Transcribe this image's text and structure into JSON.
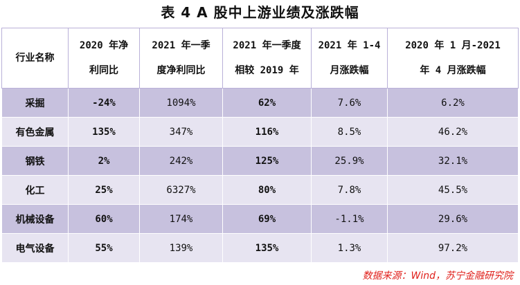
{
  "title": "表 4 A 股中上游业绩及涨跌幅",
  "table": {
    "headers": [
      [
        "行业名称"
      ],
      [
        "2020 年净",
        "利同比"
      ],
      [
        "2021 年一季",
        "度净利同比"
      ],
      [
        "2021 年一季度",
        "相较 2019 年"
      ],
      [
        "2021 年 1-4",
        "月涨跌幅"
      ],
      [
        "2020 年 1 月-2021",
        "年 4 月涨跌幅"
      ]
    ],
    "rows": [
      [
        "采掘",
        "-24%",
        "1094%",
        "62%",
        "7.6%",
        "6.2%"
      ],
      [
        "有色金属",
        "135%",
        "347%",
        "116%",
        "8.5%",
        "46.2%"
      ],
      [
        "钢铁",
        "2%",
        "242%",
        "125%",
        "25.9%",
        "32.1%"
      ],
      [
        "化工",
        "25%",
        "6327%",
        "80%",
        "7.8%",
        "45.5%"
      ],
      [
        "机械设备",
        "60%",
        "174%",
        "69%",
        "-1.1%",
        "29.6%"
      ],
      [
        "电气设备",
        "55%",
        "139%",
        "135%",
        "1.3%",
        "97.2%"
      ]
    ]
  },
  "source": "数据来源：Wind，苏宁金融研究院",
  "colors": {
    "row_dark": "#c7c1de",
    "row_light": "#e7e4f1",
    "source_text": "#e0201b"
  }
}
